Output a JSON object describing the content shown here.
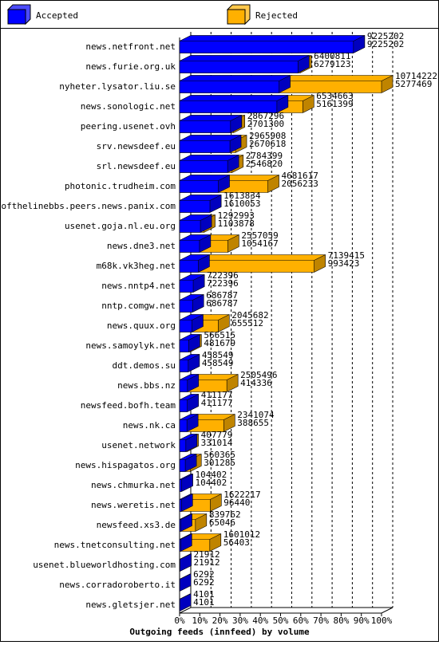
{
  "chart_data": {
    "type": "bar",
    "orientation": "horizontal",
    "xlabel": "Outgoing feeds (innfeed) by volume",
    "legend": [
      {
        "name": "Accepted",
        "color": "#0000ff"
      },
      {
        "name": "Rejected",
        "color": "#ffb000"
      }
    ],
    "categories": [
      "news.netfront.net",
      "news.furie.org.uk",
      "nyheter.lysator.liu.se",
      "news.sonologic.net",
      "peering.usenet.ovh",
      "srv.newsdeef.eu",
      "srl.newsdeef.eu",
      "photonic.trudheim.com",
      "endofthelinebbs.peers.news.panix.com",
      "usenet.goja.nl.eu.org",
      "news.dne3.net",
      "m68k.vk3heg.net",
      "news.nntp4.net",
      "nntp.comgw.net",
      "news.quux.org",
      "news.samoylyk.net",
      "ddt.demos.su",
      "news.bbs.nz",
      "newsfeed.bofh.team",
      "news.nk.ca",
      "usenet.network",
      "news.hispagatos.org",
      "news.chmurka.net",
      "news.weretis.net",
      "newsfeed.xs3.de",
      "news.tnetconsulting.net",
      "usenet.blueworldhosting.com",
      "news.corradoroberto.it",
      "news.gletsjer.net"
    ],
    "totals": [
      9225202,
      6400811,
      10714222,
      6534663,
      2867296,
      2965908,
      2784399,
      4681617,
      1613834,
      1292993,
      2557059,
      7139415,
      722396,
      686787,
      2045682,
      566515,
      458549,
      2505496,
      411177,
      2341074,
      407779,
      560365,
      104402,
      1622217,
      839762,
      1601012,
      21912,
      6292,
      4101
    ],
    "accepted": [
      9225202,
      6279123,
      5277469,
      5161399,
      2701300,
      2670618,
      2546820,
      2056233,
      1610053,
      1103878,
      1054167,
      993423,
      722396,
      686787,
      655512,
      481679,
      458549,
      414336,
      411177,
      388655,
      331014,
      301285,
      104402,
      96440,
      65046,
      56403,
      21912,
      6292,
      4101
    ],
    "xlim": [
      0,
      100
    ],
    "xticks": [
      {
        "value": 0,
        "label": "0%"
      },
      {
        "value": 10,
        "label": "10%"
      },
      {
        "value": 20,
        "label": "20%"
      },
      {
        "value": 30,
        "label": "30%"
      },
      {
        "value": 40,
        "label": "40%"
      },
      {
        "value": 50,
        "label": "50%"
      },
      {
        "value": 60,
        "label": "60%"
      },
      {
        "value": 70,
        "label": "70%"
      },
      {
        "value": 80,
        "label": "80%"
      },
      {
        "value": 90,
        "label": "90%"
      },
      {
        "value": 100,
        "label": "100%"
      }
    ],
    "grid": true
  }
}
